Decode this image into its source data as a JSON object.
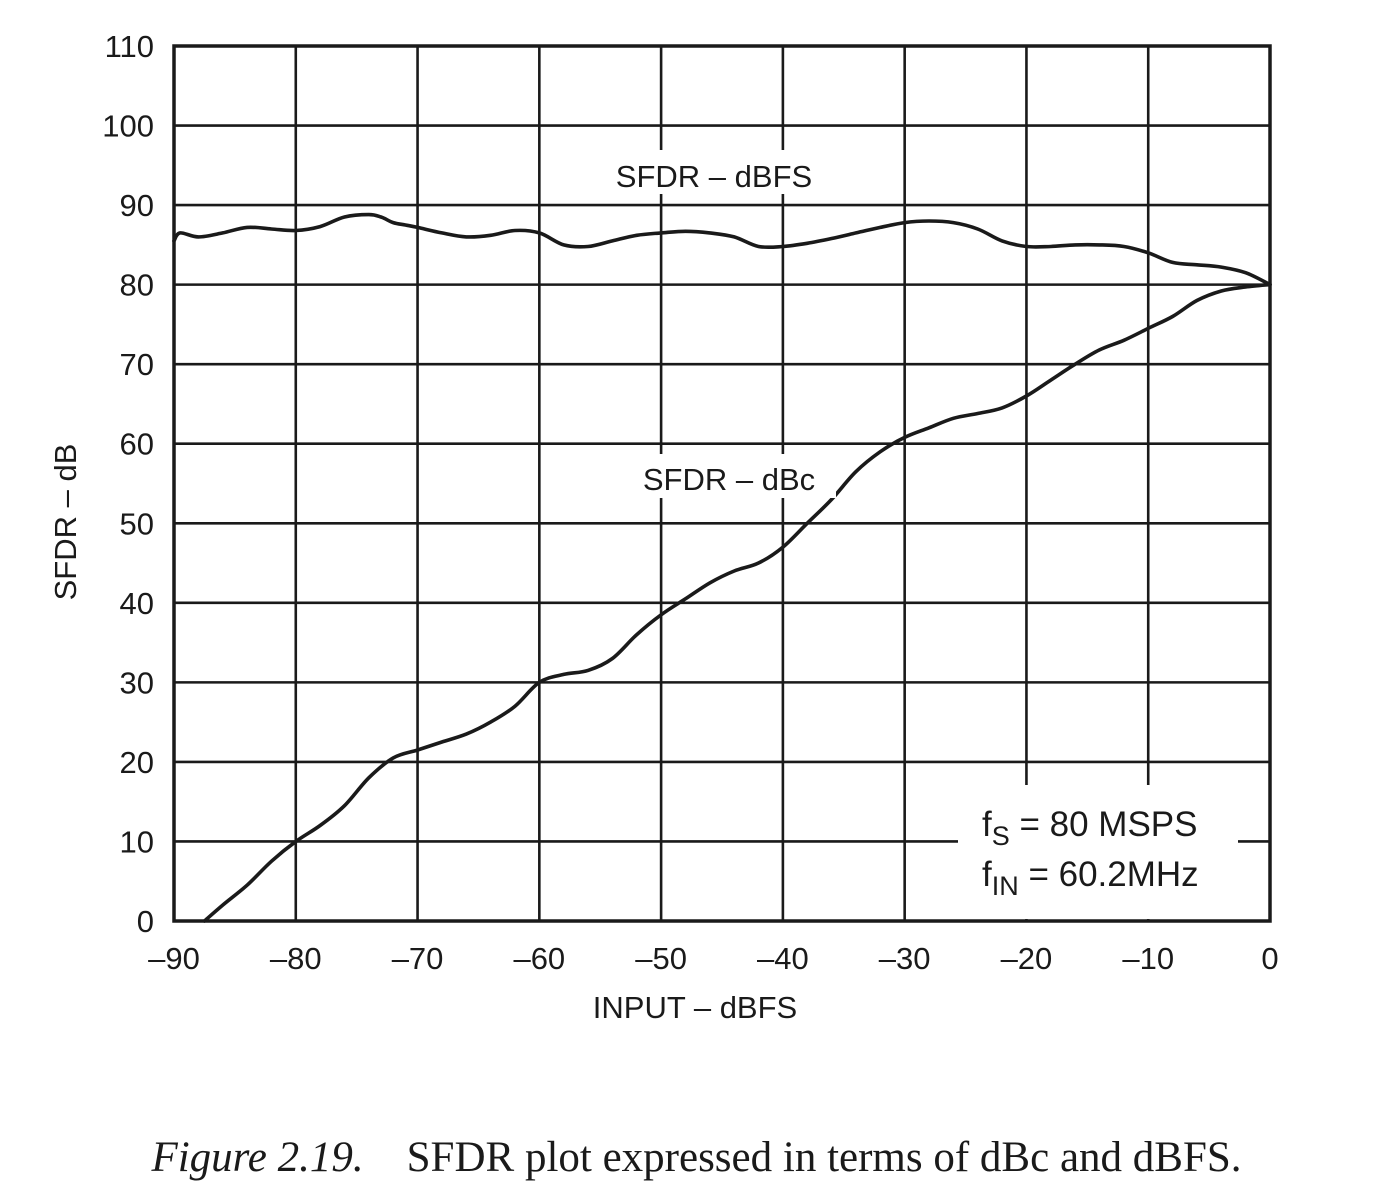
{
  "chart_data": {
    "type": "line",
    "xlabel": "INPUT  – dBFS",
    "ylabel": "SFDR – dB",
    "xlim": [
      -90,
      0
    ],
    "ylim": [
      0,
      110
    ],
    "xticks": [
      -90,
      -80,
      -70,
      -60,
      -50,
      -40,
      -30,
      -20,
      -10,
      0
    ],
    "yticks": [
      0,
      10,
      20,
      30,
      40,
      50,
      60,
      70,
      80,
      90,
      100,
      110
    ],
    "xtick_labels": [
      "–90",
      "–80",
      "–70",
      "–60",
      "–50",
      "–40",
      "–30",
      "–20",
      "–10",
      "0"
    ],
    "ytick_labels": [
      "0",
      "10",
      "20",
      "30",
      "40",
      "50",
      "60",
      "70",
      "80",
      "90",
      "100",
      "110"
    ],
    "grid": true,
    "series": [
      {
        "name": "SFDR – dBFS",
        "x": [
          -90,
          -89.5,
          -88,
          -86,
          -84,
          -82,
          -80,
          -78,
          -76,
          -74,
          -73,
          -72,
          -71,
          -70,
          -68,
          -66,
          -64,
          -62,
          -60,
          -58,
          -56,
          -54,
          -52,
          -50,
          -48,
          -46,
          -44,
          -42,
          -40,
          -38,
          -36,
          -34,
          -32,
          -30,
          -28,
          -26,
          -24,
          -22,
          -20,
          -18,
          -16,
          -14,
          -12,
          -10,
          -8,
          -6,
          -4,
          -2,
          0
        ],
        "y": [
          85.5,
          86.5,
          86.0,
          86.5,
          87.2,
          87.0,
          86.8,
          87.3,
          88.5,
          88.8,
          88.5,
          87.8,
          87.5,
          87.2,
          86.5,
          86.0,
          86.2,
          86.8,
          86.5,
          85.0,
          84.8,
          85.5,
          86.2,
          86.5,
          86.7,
          86.5,
          86.0,
          84.8,
          84.8,
          85.2,
          85.8,
          86.5,
          87.2,
          87.8,
          88.0,
          87.8,
          87.0,
          85.5,
          84.8,
          84.8,
          85.0,
          85.0,
          84.8,
          84.0,
          82.8,
          82.5,
          82.2,
          81.5,
          80.0
        ]
      },
      {
        "name": "SFDR – dBc",
        "x": [
          -87.5,
          -86,
          -84,
          -82,
          -80,
          -78,
          -76,
          -74,
          -72,
          -70,
          -68,
          -66,
          -64,
          -62,
          -60,
          -58,
          -56,
          -54,
          -52,
          -50,
          -48,
          -46,
          -44,
          -42,
          -40,
          -38,
          -36,
          -34,
          -32,
          -30,
          -28,
          -26,
          -24,
          -22,
          -20,
          -18,
          -16,
          -14,
          -12,
          -10,
          -8,
          -6,
          -4,
          -2,
          0
        ],
        "y": [
          0,
          2.0,
          4.5,
          7.5,
          10.0,
          12.0,
          14.5,
          18.0,
          20.5,
          21.5,
          22.5,
          23.5,
          25.0,
          27.0,
          30.0,
          31.0,
          31.5,
          33.0,
          36.0,
          38.5,
          40.5,
          42.5,
          44.0,
          45.0,
          47.0,
          50.0,
          53.0,
          56.5,
          59.0,
          60.8,
          62.0,
          63.2,
          63.8,
          64.5,
          66.0,
          68.0,
          70.0,
          71.8,
          73.0,
          74.5,
          76.0,
          78.0,
          79.2,
          79.7,
          80.0
        ]
      }
    ],
    "annotations": {
      "fs_main": "f",
      "fs_sub": "S",
      "fs_value": " = 80 MSPS",
      "fin_main": "f",
      "fin_sub": "IN",
      "fin_value": " = 60.2MHz"
    }
  },
  "caption": {
    "figure_label": "Figure 2.19.",
    "text": "SFDR plot expressed in terms of dBc and dBFS."
  }
}
